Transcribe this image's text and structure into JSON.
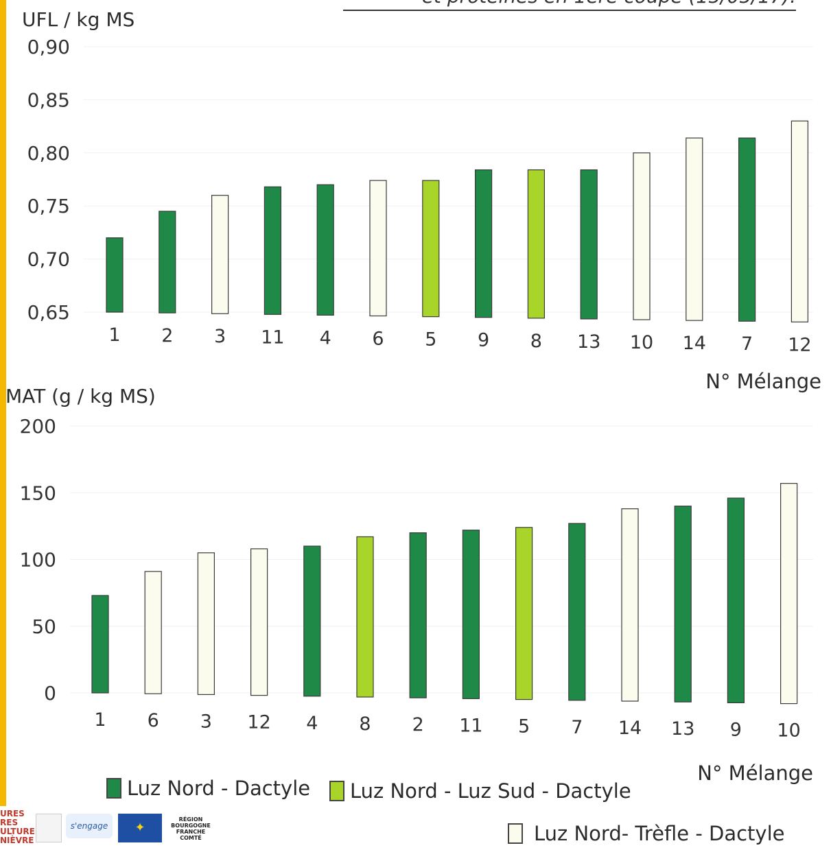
{
  "header_fragment": "et protéines en 1ère coupe (15/05/17).",
  "colors": {
    "luz_nord_dactyle": "#1f8a47",
    "luz_nord_luz_sud_dactyle": "#a9d52a",
    "luz_nord_trefle_dactyle": "#fbfbee"
  },
  "chart_data": [
    {
      "type": "bar",
      "title": "",
      "ylabel": "UFL / kg MS",
      "xlabel": "N° Mélange",
      "ylim": [
        0.65,
        0.9
      ],
      "yticks": [
        "0,65",
        "0,70",
        "0,75",
        "0,80",
        "0,85",
        "0,90"
      ],
      "categories": [
        "1",
        "2",
        "3",
        "11",
        "4",
        "6",
        "5",
        "9",
        "8",
        "13",
        "10",
        "14",
        "7",
        "12"
      ],
      "values": [
        0.72,
        0.745,
        0.76,
        0.768,
        0.77,
        0.774,
        0.774,
        0.784,
        0.784,
        0.784,
        0.8,
        0.814,
        0.814,
        0.83
      ],
      "groups": [
        "dactyle",
        "dactyle",
        "trefle",
        "dactyle",
        "dactyle",
        "trefle",
        "luzsud",
        "dactyle",
        "luzsud",
        "dactyle",
        "trefle",
        "trefle",
        "dactyle",
        "trefle"
      ]
    },
    {
      "type": "bar",
      "title": "",
      "ylabel": "MAT (g / kg MS)",
      "xlabel": "N° Mélange",
      "ylim": [
        0,
        200
      ],
      "yticks": [
        "0",
        "50",
        "100",
        "150",
        "200"
      ],
      "categories": [
        "1",
        "6",
        "3",
        "12",
        "4",
        "8",
        "2",
        "11",
        "5",
        "7",
        "14",
        "13",
        "9",
        "10"
      ],
      "values": [
        73,
        91,
        105,
        108,
        110,
        117,
        120,
        122,
        124,
        127,
        138,
        140,
        146,
        157
      ],
      "groups": [
        "dactyle",
        "trefle",
        "trefle",
        "trefle",
        "dactyle",
        "luzsud",
        "dactyle",
        "dactyle",
        "luzsud",
        "dactyle",
        "trefle",
        "dactyle",
        "dactyle",
        "trefle"
      ]
    }
  ],
  "legend": [
    {
      "key": "dactyle",
      "label": "Luz Nord - Dactyle"
    },
    {
      "key": "luzsud",
      "label": "Luz Nord - Luz Sud - Dactyle"
    },
    {
      "key": "trefle",
      "label": "Luz Nord- Trèfle - Dactyle"
    }
  ],
  "logos": {
    "left_fragment": "URES\nRES\nULTURE\nNIÈVRE",
    "engage": "s'engage",
    "region": "RÉGION\nBOURGOGNE\nFRANCHE\nCOMTÉ"
  }
}
